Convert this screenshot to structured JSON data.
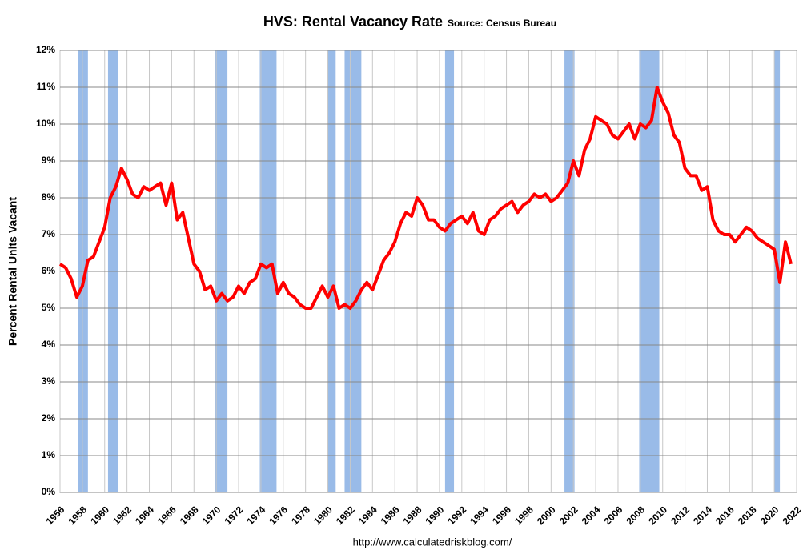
{
  "chart_data": {
    "type": "line",
    "title": "HVS: Rental Vacancy Rate",
    "subtitle": "Source: Census Bureau",
    "y_label": "Percent Rental Units Vacant",
    "footer": "http://www.calculatedriskblog.com/",
    "color": "#ff0000",
    "recession_color": "#99bbe8",
    "grid": true,
    "xlim": [
      1956,
      2022
    ],
    "ylim": [
      0,
      12
    ],
    "xticks": [
      1956,
      1958,
      1960,
      1962,
      1964,
      1966,
      1968,
      1970,
      1972,
      1974,
      1976,
      1978,
      1980,
      1982,
      1984,
      1986,
      1988,
      1990,
      1992,
      1994,
      1996,
      1998,
      2000,
      2002,
      2004,
      2006,
      2008,
      2010,
      2012,
      2014,
      2016,
      2018,
      2020,
      2022
    ],
    "yticks": [
      {
        "value": 0,
        "label": "0%"
      },
      {
        "value": 1,
        "label": "1%"
      },
      {
        "value": 2,
        "label": "2%"
      },
      {
        "value": 3,
        "label": "3%"
      },
      {
        "value": 4,
        "label": "4%"
      },
      {
        "value": 5,
        "label": "5%"
      },
      {
        "value": 6,
        "label": "6%"
      },
      {
        "value": 7,
        "label": "7%"
      },
      {
        "value": 8,
        "label": "8%"
      },
      {
        "value": 9,
        "label": "9%"
      },
      {
        "value": 10,
        "label": "10%"
      },
      {
        "value": 11,
        "label": "11%"
      },
      {
        "value": 12,
        "label": "12%"
      }
    ],
    "recessions": [
      [
        1957.6,
        1958.5
      ],
      [
        1960.3,
        1961.2
      ],
      [
        1969.9,
        1971.0
      ],
      [
        1973.9,
        1975.4
      ],
      [
        1980.0,
        1980.7
      ],
      [
        1981.5,
        1983.0
      ],
      [
        1990.5,
        1991.3
      ],
      [
        2001.2,
        2002.1
      ],
      [
        2007.9,
        2009.7
      ],
      [
        2020.0,
        2020.5
      ]
    ],
    "x": [
      1956.0,
      1956.5,
      1957.0,
      1957.5,
      1958.0,
      1958.5,
      1959.0,
      1959.5,
      1960.0,
      1960.5,
      1961.0,
      1961.5,
      1962.0,
      1962.5,
      1963.0,
      1963.5,
      1964.0,
      1964.5,
      1965.0,
      1965.5,
      1966.0,
      1966.5,
      1967.0,
      1967.5,
      1968.0,
      1968.5,
      1969.0,
      1969.5,
      1970.0,
      1970.5,
      1971.0,
      1971.5,
      1972.0,
      1972.5,
      1973.0,
      1973.5,
      1974.0,
      1974.5,
      1975.0,
      1975.5,
      1976.0,
      1976.5,
      1977.0,
      1977.5,
      1978.0,
      1978.5,
      1979.0,
      1979.5,
      1980.0,
      1980.5,
      1981.0,
      1981.5,
      1982.0,
      1982.5,
      1983.0,
      1983.5,
      1984.0,
      1984.5,
      1985.0,
      1985.5,
      1986.0,
      1986.5,
      1987.0,
      1987.5,
      1988.0,
      1988.5,
      1989.0,
      1989.5,
      1990.0,
      1990.5,
      1991.0,
      1991.5,
      1992.0,
      1992.5,
      1993.0,
      1993.5,
      1994.0,
      1994.5,
      1995.0,
      1995.5,
      1996.0,
      1996.5,
      1997.0,
      1997.5,
      1998.0,
      1998.5,
      1999.0,
      1999.5,
      2000.0,
      2000.5,
      2001.0,
      2001.5,
      2002.0,
      2002.5,
      2003.0,
      2003.5,
      2004.0,
      2004.5,
      2005.0,
      2005.5,
      2006.0,
      2006.5,
      2007.0,
      2007.5,
      2008.0,
      2008.5,
      2009.0,
      2009.5,
      2010.0,
      2010.5,
      2011.0,
      2011.5,
      2012.0,
      2012.5,
      2013.0,
      2013.5,
      2014.0,
      2014.5,
      2015.0,
      2015.5,
      2016.0,
      2016.5,
      2017.0,
      2017.5,
      2018.0,
      2018.5,
      2019.0,
      2019.5,
      2020.0,
      2020.5,
      2021.0,
      2021.5
    ],
    "values": [
      6.2,
      6.1,
      5.8,
      5.3,
      5.6,
      6.3,
      6.4,
      6.8,
      7.2,
      8.0,
      8.3,
      8.8,
      8.5,
      8.1,
      8.0,
      8.3,
      8.2,
      8.3,
      8.4,
      7.8,
      8.4,
      7.4,
      7.6,
      6.9,
      6.2,
      6.0,
      5.5,
      5.6,
      5.2,
      5.4,
      5.2,
      5.3,
      5.6,
      5.4,
      5.7,
      5.8,
      6.2,
      6.1,
      6.2,
      5.4,
      5.7,
      5.4,
      5.3,
      5.1,
      5.0,
      5.0,
      5.3,
      5.6,
      5.3,
      5.6,
      5.0,
      5.1,
      5.0,
      5.2,
      5.5,
      5.7,
      5.5,
      5.9,
      6.3,
      6.5,
      6.8,
      7.3,
      7.6,
      7.5,
      8.0,
      7.8,
      7.4,
      7.4,
      7.2,
      7.1,
      7.3,
      7.4,
      7.5,
      7.3,
      7.6,
      7.1,
      7.0,
      7.4,
      7.5,
      7.7,
      7.8,
      7.9,
      7.6,
      7.8,
      7.9,
      8.1,
      8.0,
      8.1,
      7.9,
      8.0,
      8.2,
      8.4,
      9.0,
      8.6,
      9.3,
      9.6,
      10.2,
      10.1,
      10.0,
      9.7,
      9.6,
      9.8,
      10.0,
      9.6,
      10.0,
      9.9,
      10.1,
      11.0,
      10.6,
      10.3,
      9.7,
      9.5,
      8.8,
      8.6,
      8.6,
      8.2,
      8.3,
      7.4,
      7.1,
      7.0,
      7.0,
      6.8,
      7.0,
      7.2,
      7.1,
      6.9,
      6.8,
      6.7,
      6.6,
      5.7,
      6.8,
      6.2
    ]
  }
}
